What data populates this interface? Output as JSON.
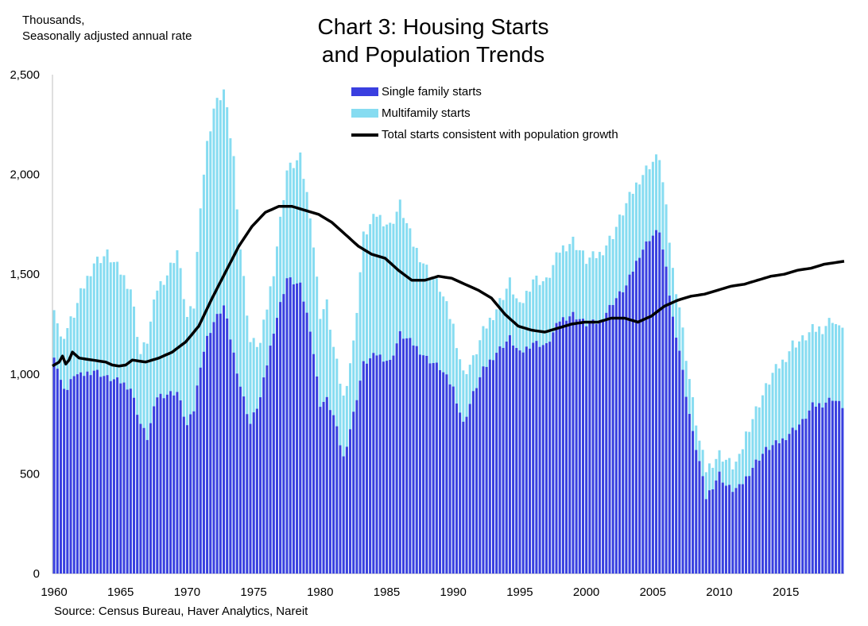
{
  "header": {
    "unit_line1": "Thousands,",
    "unit_line2": "Seasonally adjusted annual rate",
    "title_line1": "Chart 3: Housing Starts",
    "title_line2": "and Population Trends"
  },
  "footer": {
    "source": "Source: Census Bureau, Haver Analytics, Nareit"
  },
  "chart_data": {
    "type": "bar",
    "frequency": "quarterly",
    "x_start": 1960.0,
    "x_step": 0.25,
    "x_tick_labels": [
      "1960",
      "1965",
      "1970",
      "1975",
      "1980",
      "1985",
      "1990",
      "1995",
      "2000",
      "2005",
      "2010",
      "2015"
    ],
    "y_tick_labels": [
      "0",
      "500",
      "1,000",
      "1,500",
      "2,000",
      "2,500"
    ],
    "ylim": [
      0,
      2500
    ],
    "colors": {
      "single": "#3a3fe0",
      "multi": "#86dcf1",
      "line": "#000000"
    },
    "legend_position": "top-center",
    "series": [
      {
        "name": "Single family starts",
        "kind": "bar",
        "stacked": true,
        "anchors": [
          [
            1960.0,
            1100
          ],
          [
            1960.5,
            960
          ],
          [
            1961.0,
            920
          ],
          [
            1961.5,
            1000
          ],
          [
            1962.0,
            990
          ],
          [
            1963.0,
            1020
          ],
          [
            1964.0,
            980
          ],
          [
            1965.0,
            960
          ],
          [
            1965.75,
            930
          ],
          [
            1966.5,
            750
          ],
          [
            1967.0,
            680
          ],
          [
            1967.75,
            890
          ],
          [
            1968.5,
            900
          ],
          [
            1969.25,
            910
          ],
          [
            1970.0,
            740
          ],
          [
            1970.5,
            820
          ],
          [
            1971.0,
            1050
          ],
          [
            1971.5,
            1180
          ],
          [
            1972.0,
            1260
          ],
          [
            1972.75,
            1340
          ],
          [
            1973.5,
            1100
          ],
          [
            1974.0,
            940
          ],
          [
            1974.75,
            750
          ],
          [
            1975.5,
            880
          ],
          [
            1976.5,
            1220
          ],
          [
            1977.5,
            1480
          ],
          [
            1978.5,
            1440
          ],
          [
            1979.25,
            1230
          ],
          [
            1980.0,
            850
          ],
          [
            1980.5,
            870
          ],
          [
            1981.0,
            790
          ],
          [
            1981.75,
            580
          ],
          [
            1982.5,
            800
          ],
          [
            1983.25,
            1050
          ],
          [
            1984.25,
            1100
          ],
          [
            1985.25,
            1060
          ],
          [
            1986.0,
            1200
          ],
          [
            1987.0,
            1150
          ],
          [
            1988.0,
            1080
          ],
          [
            1989.0,
            1030
          ],
          [
            1990.0,
            930
          ],
          [
            1990.75,
            750
          ],
          [
            1991.5,
            900
          ],
          [
            1992.25,
            1020
          ],
          [
            1993.25,
            1110
          ],
          [
            1994.25,
            1180
          ],
          [
            1995.0,
            1100
          ],
          [
            1996.0,
            1160
          ],
          [
            1997.0,
            1140
          ],
          [
            1998.0,
            1270
          ],
          [
            1999.0,
            1300
          ],
          [
            2000.0,
            1250
          ],
          [
            2001.0,
            1260
          ],
          [
            2002.0,
            1360
          ],
          [
            2003.0,
            1440
          ],
          [
            2004.0,
            1600
          ],
          [
            2004.75,
            1680
          ],
          [
            2005.5,
            1720
          ],
          [
            2006.0,
            1520
          ],
          [
            2006.5,
            1280
          ],
          [
            2007.0,
            1120
          ],
          [
            2007.5,
            900
          ],
          [
            2008.0,
            700
          ],
          [
            2008.5,
            560
          ],
          [
            2009.0,
            380
          ],
          [
            2009.5,
            440
          ],
          [
            2010.0,
            500
          ],
          [
            2010.5,
            440
          ],
          [
            2011.0,
            420
          ],
          [
            2011.5,
            430
          ],
          [
            2012.0,
            480
          ],
          [
            2012.75,
            560
          ],
          [
            2013.5,
            620
          ],
          [
            2014.0,
            640
          ],
          [
            2014.75,
            670
          ],
          [
            2015.5,
            720
          ],
          [
            2016.25,
            760
          ],
          [
            2017.0,
            840
          ],
          [
            2017.75,
            850
          ],
          [
            2018.5,
            880
          ],
          [
            2019.0,
            850
          ],
          [
            2019.25,
            840
          ]
        ]
      },
      {
        "name": "Multifamily starts",
        "kind": "bar",
        "stacked": true,
        "anchors": [
          [
            1960.0,
            1350
          ],
          [
            1960.5,
            1170
          ],
          [
            1961.0,
            1230
          ],
          [
            1961.5,
            1300
          ],
          [
            1962.0,
            1400
          ],
          [
            1963.0,
            1560
          ],
          [
            1964.0,
            1600
          ],
          [
            1965.0,
            1510
          ],
          [
            1965.75,
            1430
          ],
          [
            1966.5,
            1100
          ],
          [
            1967.0,
            1170
          ],
          [
            1967.75,
            1430
          ],
          [
            1968.5,
            1500
          ],
          [
            1969.25,
            1620
          ],
          [
            1970.0,
            1280
          ],
          [
            1970.5,
            1340
          ],
          [
            1971.0,
            1860
          ],
          [
            1971.5,
            2150
          ],
          [
            1972.0,
            2330
          ],
          [
            1972.75,
            2420
          ],
          [
            1973.5,
            2080
          ],
          [
            1974.0,
            1630
          ],
          [
            1974.75,
            1160
          ],
          [
            1975.5,
            1150
          ],
          [
            1976.5,
            1520
          ],
          [
            1977.5,
            2020
          ],
          [
            1978.5,
            2080
          ],
          [
            1979.25,
            1810
          ],
          [
            1980.0,
            1300
          ],
          [
            1980.5,
            1350
          ],
          [
            1981.0,
            1130
          ],
          [
            1981.75,
            880
          ],
          [
            1982.5,
            1150
          ],
          [
            1983.25,
            1690
          ],
          [
            1984.25,
            1800
          ],
          [
            1985.25,
            1740
          ],
          [
            1986.0,
            1850
          ],
          [
            1987.0,
            1650
          ],
          [
            1988.0,
            1530
          ],
          [
            1989.0,
            1430
          ],
          [
            1990.0,
            1240
          ],
          [
            1990.75,
            1000
          ],
          [
            1991.5,
            1070
          ],
          [
            1992.25,
            1210
          ],
          [
            1993.25,
            1330
          ],
          [
            1994.25,
            1460
          ],
          [
            1995.0,
            1330
          ],
          [
            1996.0,
            1480
          ],
          [
            1997.0,
            1460
          ],
          [
            1998.0,
            1620
          ],
          [
            1999.0,
            1670
          ],
          [
            2000.0,
            1570
          ],
          [
            2001.0,
            1600
          ],
          [
            2002.0,
            1700
          ],
          [
            2003.0,
            1850
          ],
          [
            2004.0,
            1980
          ],
          [
            2004.75,
            2050
          ],
          [
            2005.5,
            2090
          ],
          [
            2006.0,
            1820
          ],
          [
            2006.5,
            1520
          ],
          [
            2007.0,
            1340
          ],
          [
            2007.5,
            1090
          ],
          [
            2008.0,
            860
          ],
          [
            2008.5,
            660
          ],
          [
            2009.0,
            520
          ],
          [
            2009.5,
            560
          ],
          [
            2010.0,
            600
          ],
          [
            2010.5,
            570
          ],
          [
            2011.0,
            540
          ],
          [
            2011.5,
            570
          ],
          [
            2012.0,
            700
          ],
          [
            2012.75,
            820
          ],
          [
            2013.5,
            930
          ],
          [
            2014.0,
            1000
          ],
          [
            2014.75,
            1060
          ],
          [
            2015.5,
            1150
          ],
          [
            2016.25,
            1170
          ],
          [
            2017.0,
            1220
          ],
          [
            2017.75,
            1230
          ],
          [
            2018.5,
            1280
          ],
          [
            2019.0,
            1220
          ],
          [
            2019.25,
            1250
          ]
        ]
      },
      {
        "name": "Total starts consistent with population growth",
        "kind": "line",
        "anchors": [
          [
            1960.0,
            1040
          ],
          [
            1960.5,
            1060
          ],
          [
            1960.75,
            1090
          ],
          [
            1961.0,
            1050
          ],
          [
            1961.25,
            1070
          ],
          [
            1961.5,
            1110
          ],
          [
            1962.0,
            1080
          ],
          [
            1963.0,
            1070
          ],
          [
            1964.0,
            1060
          ],
          [
            1964.5,
            1045
          ],
          [
            1965.0,
            1040
          ],
          [
            1965.5,
            1045
          ],
          [
            1966.0,
            1070
          ],
          [
            1967.0,
            1060
          ],
          [
            1968.0,
            1080
          ],
          [
            1969.0,
            1110
          ],
          [
            1970.0,
            1160
          ],
          [
            1971.0,
            1240
          ],
          [
            1972.0,
            1380
          ],
          [
            1973.0,
            1510
          ],
          [
            1974.0,
            1640
          ],
          [
            1975.0,
            1740
          ],
          [
            1976.0,
            1810
          ],
          [
            1977.0,
            1840
          ],
          [
            1978.0,
            1840
          ],
          [
            1979.0,
            1820
          ],
          [
            1980.0,
            1800
          ],
          [
            1981.0,
            1760
          ],
          [
            1982.0,
            1700
          ],
          [
            1983.0,
            1640
          ],
          [
            1984.0,
            1600
          ],
          [
            1985.0,
            1580
          ],
          [
            1986.0,
            1520
          ],
          [
            1987.0,
            1470
          ],
          [
            1988.0,
            1470
          ],
          [
            1989.0,
            1490
          ],
          [
            1990.0,
            1480
          ],
          [
            1991.0,
            1450
          ],
          [
            1992.0,
            1420
          ],
          [
            1993.0,
            1380
          ],
          [
            1994.0,
            1300
          ],
          [
            1995.0,
            1240
          ],
          [
            1996.0,
            1220
          ],
          [
            1997.0,
            1210
          ],
          [
            1998.0,
            1230
          ],
          [
            1999.0,
            1250
          ],
          [
            2000.0,
            1260
          ],
          [
            2001.0,
            1260
          ],
          [
            2002.0,
            1280
          ],
          [
            2003.0,
            1280
          ],
          [
            2004.0,
            1260
          ],
          [
            2005.0,
            1290
          ],
          [
            2006.0,
            1340
          ],
          [
            2007.0,
            1370
          ],
          [
            2008.0,
            1390
          ],
          [
            2009.0,
            1400
          ],
          [
            2010.0,
            1420
          ],
          [
            2011.0,
            1440
          ],
          [
            2012.0,
            1450
          ],
          [
            2013.0,
            1470
          ],
          [
            2014.0,
            1490
          ],
          [
            2015.0,
            1500
          ],
          [
            2016.0,
            1520
          ],
          [
            2017.0,
            1530
          ],
          [
            2018.0,
            1550
          ],
          [
            2019.0,
            1560
          ],
          [
            2019.5,
            1565
          ]
        ]
      }
    ]
  }
}
